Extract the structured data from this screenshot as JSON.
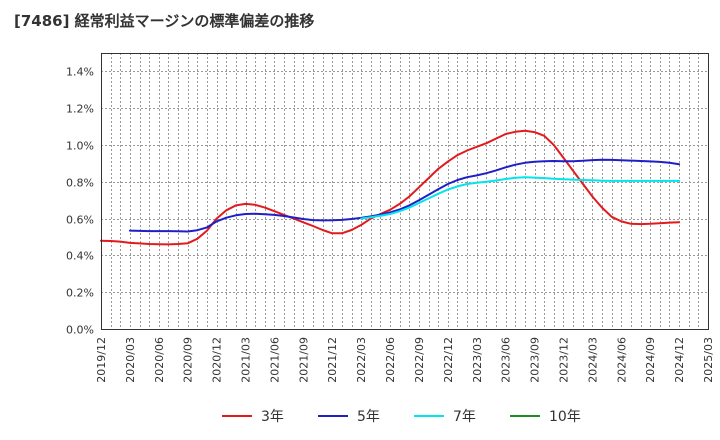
{
  "title": "[7486]  経常利益マージンの標準偏差の推移",
  "chart_data": {
    "type": "line",
    "title": "[7486]  経常利益マージンの標準偏差の推移",
    "xlabel": "",
    "ylabel": "",
    "ylim": [
      0,
      1.5
    ],
    "yticks": [
      0,
      0.2,
      0.4,
      0.6,
      0.8,
      1.0,
      1.2,
      1.4
    ],
    "ytick_labels": [
      "0.0%",
      "0.2%",
      "0.4%",
      "0.6%",
      "0.8%",
      "1.0%",
      "1.2%",
      "1.4%"
    ],
    "x_range": [
      "2019/12",
      "2025/03"
    ],
    "xtick_labels": [
      "2019/12",
      "2020/03",
      "2020/06",
      "2020/09",
      "2020/12",
      "2021/03",
      "2021/06",
      "2021/09",
      "2021/12",
      "2022/03",
      "2022/06",
      "2022/09",
      "2022/12",
      "2023/03",
      "2023/06",
      "2023/09",
      "2023/12",
      "2024/03",
      "2024/06",
      "2024/09",
      "2024/12",
      "2025/03"
    ],
    "grid": true,
    "legend_position": "bottom",
    "series": [
      {
        "name": "3年",
        "color": "#e31a1c",
        "x": [
          "2019/12",
          "2020/01",
          "2020/02",
          "2020/03",
          "2020/04",
          "2020/05",
          "2020/06",
          "2020/07",
          "2020/08",
          "2020/09",
          "2020/10",
          "2020/11",
          "2020/12",
          "2021/01",
          "2021/02",
          "2021/03",
          "2021/04",
          "2021/05",
          "2021/06",
          "2021/07",
          "2021/08",
          "2021/09",
          "2021/10",
          "2021/11",
          "2021/12",
          "2022/01",
          "2022/02",
          "2022/03",
          "2022/04",
          "2022/05",
          "2022/06",
          "2022/07",
          "2022/08",
          "2022/09",
          "2022/10",
          "2022/11",
          "2022/12",
          "2023/01",
          "2023/02",
          "2023/03",
          "2023/04",
          "2023/05",
          "2023/06",
          "2023/07",
          "2023/08",
          "2023/09",
          "2023/10",
          "2023/11",
          "2023/12",
          "2024/01",
          "2024/02",
          "2024/03",
          "2024/04",
          "2024/05",
          "2024/06",
          "2024/07",
          "2024/08",
          "2024/09",
          "2024/10",
          "2024/11",
          "2024/12"
        ],
        "y": [
          0.48,
          0.478,
          0.475,
          0.468,
          0.465,
          0.462,
          0.461,
          0.46,
          0.462,
          0.466,
          0.49,
          0.535,
          0.6,
          0.645,
          0.672,
          0.68,
          0.675,
          0.66,
          0.64,
          0.62,
          0.6,
          0.58,
          0.56,
          0.538,
          0.52,
          0.52,
          0.538,
          0.565,
          0.6,
          0.625,
          0.648,
          0.68,
          0.72,
          0.77,
          0.82,
          0.87,
          0.91,
          0.945,
          0.97,
          0.99,
          1.01,
          1.035,
          1.06,
          1.072,
          1.077,
          1.07,
          1.05,
          1.0,
          0.93,
          0.86,
          0.79,
          0.72,
          0.66,
          0.61,
          0.585,
          0.572,
          0.57,
          0.572,
          0.575,
          0.578,
          0.58
        ]
      },
      {
        "name": "5年",
        "color": "#1f1fc8",
        "x": [
          "2020/03",
          "2020/04",
          "2020/05",
          "2020/06",
          "2020/07",
          "2020/08",
          "2020/09",
          "2020/10",
          "2020/11",
          "2020/12",
          "2021/01",
          "2021/02",
          "2021/03",
          "2021/04",
          "2021/05",
          "2021/06",
          "2021/07",
          "2021/08",
          "2021/09",
          "2021/10",
          "2021/11",
          "2021/12",
          "2022/01",
          "2022/02",
          "2022/03",
          "2022/04",
          "2022/05",
          "2022/06",
          "2022/07",
          "2022/08",
          "2022/09",
          "2022/10",
          "2022/11",
          "2022/12",
          "2023/01",
          "2023/02",
          "2023/03",
          "2023/04",
          "2023/05",
          "2023/06",
          "2023/07",
          "2023/08",
          "2023/09",
          "2023/10",
          "2023/11",
          "2023/12",
          "2024/01",
          "2024/02",
          "2024/03",
          "2024/04",
          "2024/05",
          "2024/06",
          "2024/07",
          "2024/08",
          "2024/09",
          "2024/10",
          "2024/11",
          "2024/12"
        ],
        "y": [
          0.535,
          0.533,
          0.532,
          0.532,
          0.532,
          0.531,
          0.53,
          0.537,
          0.552,
          0.585,
          0.605,
          0.618,
          0.625,
          0.626,
          0.624,
          0.62,
          0.614,
          0.606,
          0.598,
          0.592,
          0.59,
          0.591,
          0.593,
          0.598,
          0.604,
          0.612,
          0.622,
          0.633,
          0.65,
          0.672,
          0.7,
          0.73,
          0.76,
          0.788,
          0.81,
          0.825,
          0.835,
          0.847,
          0.862,
          0.879,
          0.893,
          0.903,
          0.909,
          0.912,
          0.913,
          0.912,
          0.912,
          0.914,
          0.918,
          0.92,
          0.919,
          0.917,
          0.915,
          0.913,
          0.911,
          0.908,
          0.903,
          0.895
        ]
      },
      {
        "name": "7年",
        "color": "#00e5ee",
        "x": [
          "2022/03",
          "2022/04",
          "2022/05",
          "2022/06",
          "2022/07",
          "2022/08",
          "2022/09",
          "2022/10",
          "2022/11",
          "2022/12",
          "2023/01",
          "2023/02",
          "2023/03",
          "2023/04",
          "2023/05",
          "2023/06",
          "2023/07",
          "2023/08",
          "2023/09",
          "2023/10",
          "2023/11",
          "2023/12",
          "2024/01",
          "2024/02",
          "2024/03",
          "2024/04",
          "2024/05",
          "2024/06",
          "2024/07",
          "2024/08",
          "2024/09",
          "2024/10",
          "2024/11",
          "2024/12"
        ],
        "y": [
          0.6,
          0.607,
          0.615,
          0.625,
          0.64,
          0.66,
          0.685,
          0.71,
          0.735,
          0.758,
          0.775,
          0.788,
          0.795,
          0.8,
          0.807,
          0.815,
          0.822,
          0.825,
          0.823,
          0.82,
          0.817,
          0.814,
          0.812,
          0.81,
          0.808,
          0.806,
          0.805,
          0.805,
          0.805,
          0.805,
          0.805,
          0.805,
          0.805,
          0.805
        ]
      },
      {
        "name": "10年",
        "color": "#228b22",
        "x": [],
        "y": []
      }
    ]
  }
}
